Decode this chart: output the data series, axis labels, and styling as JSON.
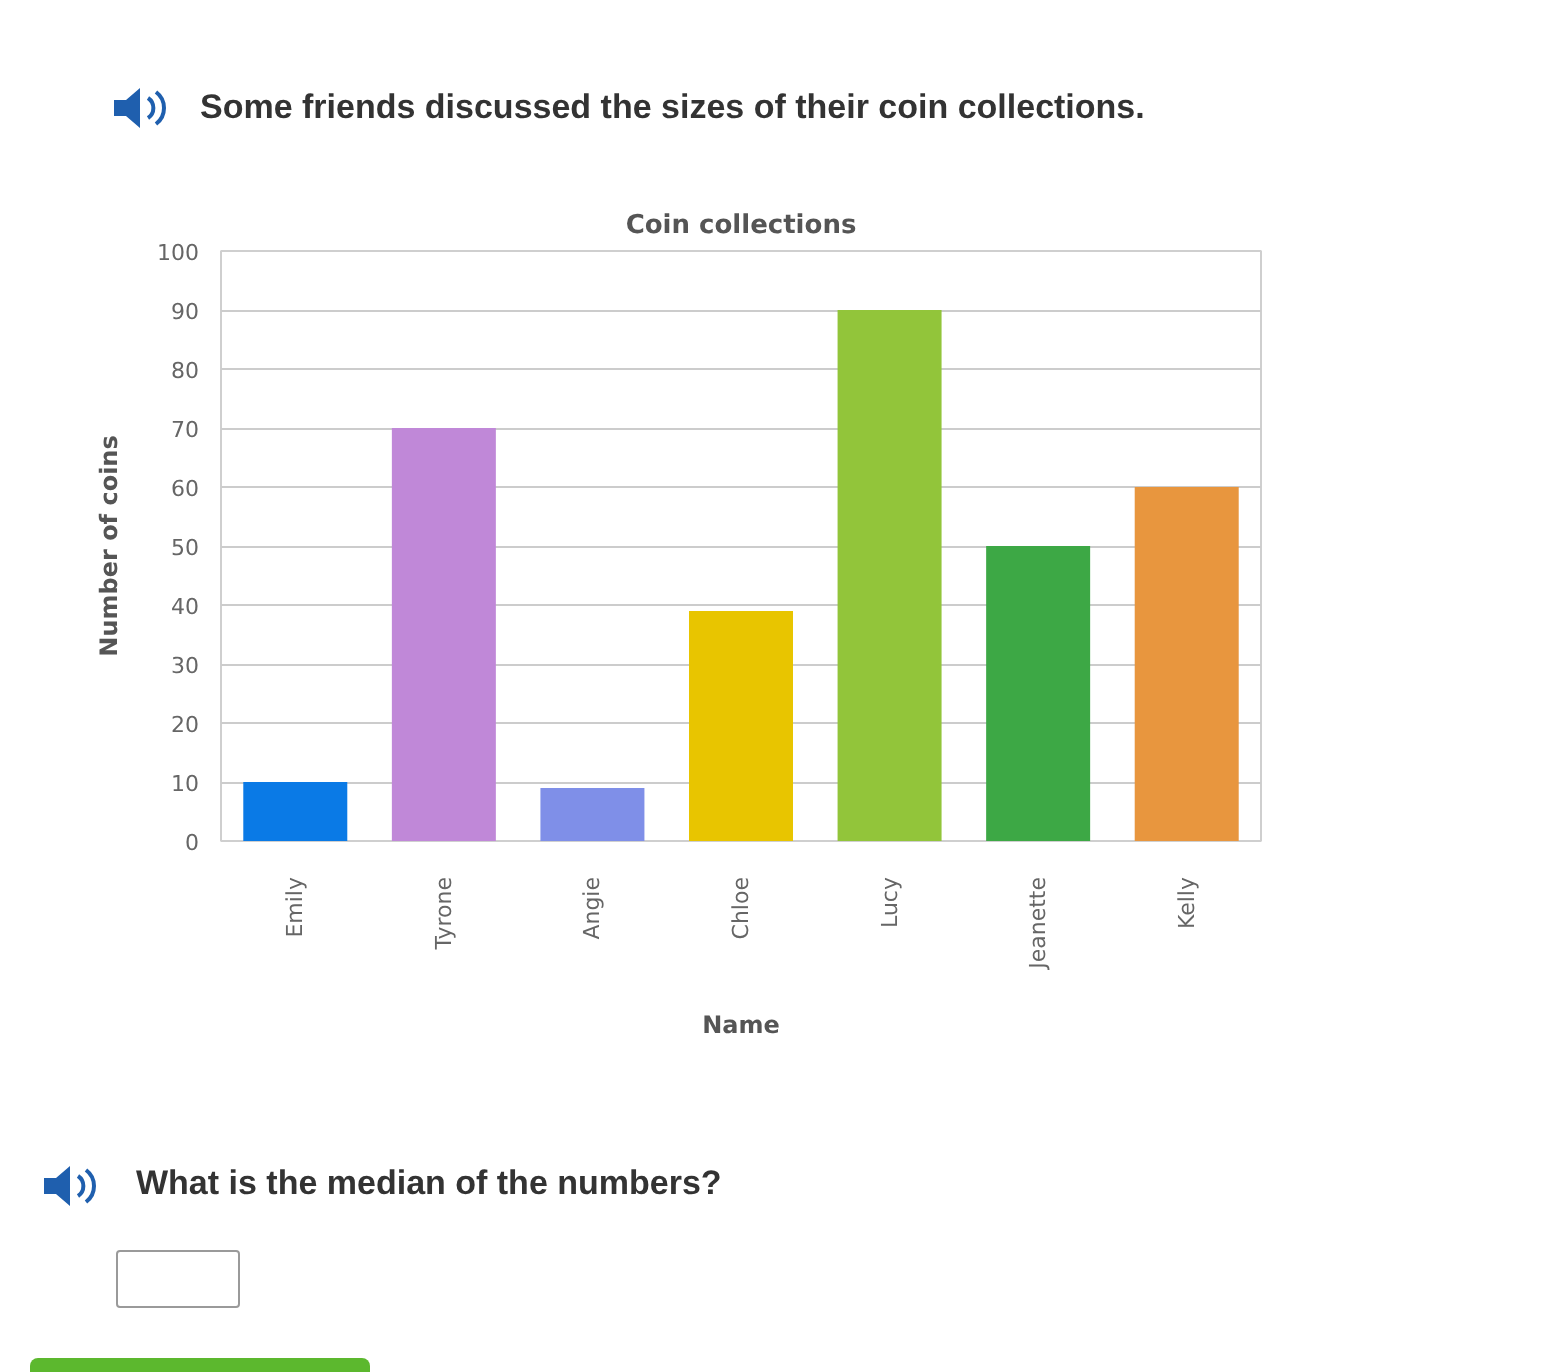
{
  "chart_data": {
    "type": "bar",
    "title": "Coin collections",
    "xlabel": "Name",
    "ylabel": "Number of coins",
    "categories": [
      "Emily",
      "Tyrone",
      "Angie",
      "Chloe",
      "Lucy",
      "Jeanette",
      "Kelly"
    ],
    "values": [
      10,
      70,
      9,
      39,
      90,
      50,
      60
    ],
    "colors": [
      "#0a7ae6",
      "#c088d8",
      "#7f8fe8",
      "#e8c500",
      "#92c53a",
      "#3da845",
      "#e8963e"
    ],
    "ylim": [
      0,
      100
    ],
    "yticks": [
      0,
      10,
      20,
      30,
      40,
      50,
      60,
      70,
      80,
      90,
      100
    ],
    "grid": "y",
    "annotations": [
      "Some friends discussed the sizes of their coin collections.",
      "What is the median of the numbers?"
    ]
  }
}
